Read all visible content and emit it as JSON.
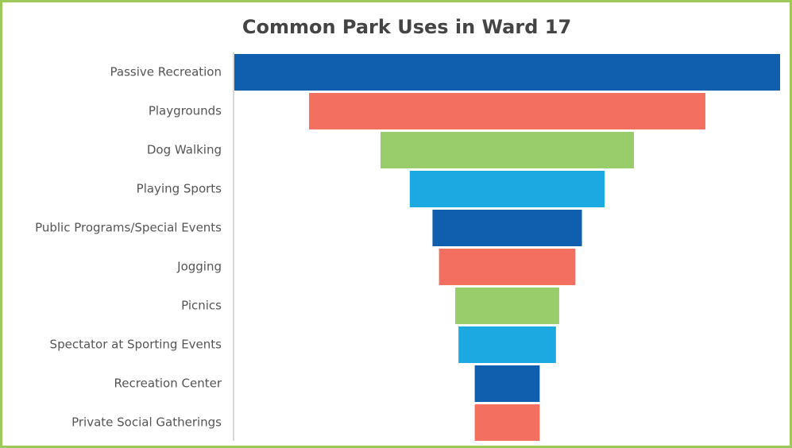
{
  "chart_data": {
    "type": "funnel",
    "title": "Common Park Uses in Ward 17",
    "categories": [
      "Passive Recreation",
      "Playgrounds",
      "Dog Walking",
      "Playing Sports",
      "Public Programs/Special Events",
      "Jogging",
      "Picnics",
      "Spectator at Sporting Events",
      "Recreation Center",
      "Private Social Gatherings"
    ],
    "values": [
      84,
      61,
      39,
      30,
      23,
      21,
      16,
      15,
      10,
      10
    ],
    "colors": [
      "#105fae",
      "#f36f5f",
      "#99cd6b",
      "#1ca9e1"
    ]
  }
}
